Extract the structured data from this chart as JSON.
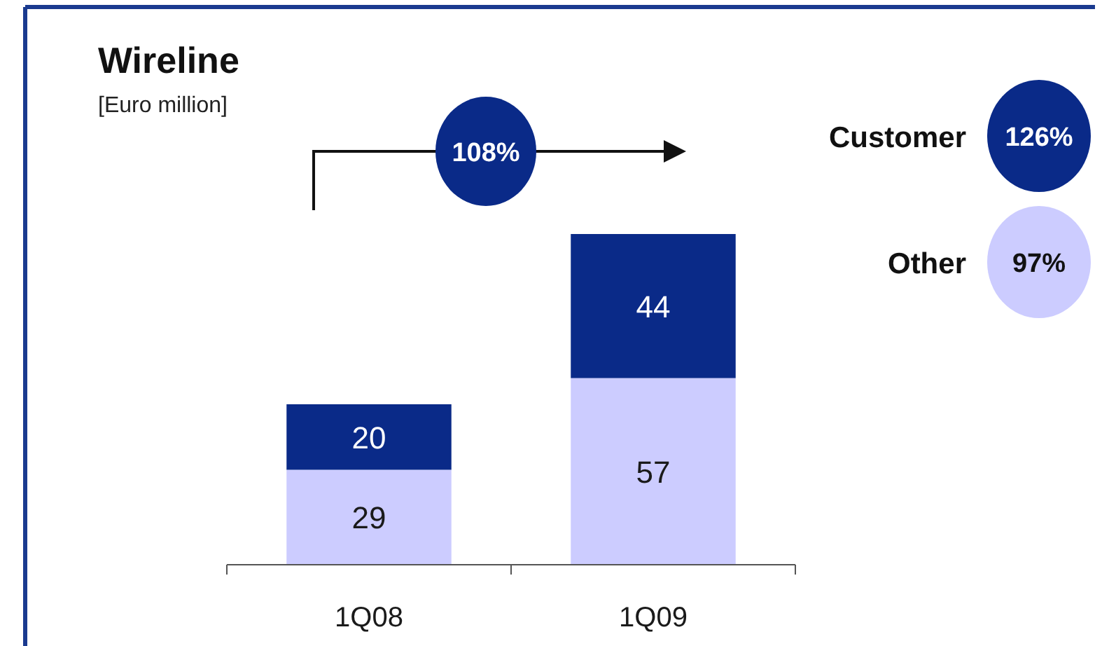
{
  "chart_data": {
    "type": "bar",
    "title": "Wireline",
    "subtitle": "[Euro million]",
    "categories": [
      "1Q08",
      "1Q09"
    ],
    "stacked": true,
    "data_labels": true,
    "legend": "top right",
    "series": [
      {
        "name": "Other",
        "color": "#ccccff",
        "values": [
          29,
          57
        ]
      },
      {
        "name": "Customer",
        "color": "#0a2a88",
        "values": [
          20,
          44
        ]
      }
    ],
    "annotations": [
      "108%",
      "97%",
      "126%"
    ]
  }
}
